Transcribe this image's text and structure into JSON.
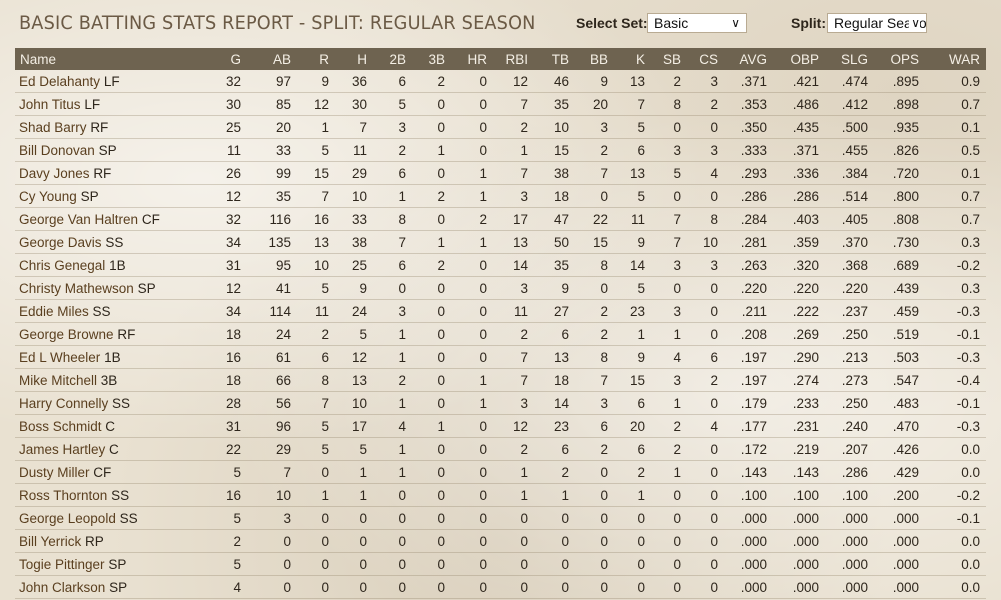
{
  "header": {
    "title": "BASIC BATTING STATS REPORT - SPLIT: REGULAR SEASON",
    "select_set_label": "Select Set:",
    "select_set_value": "Basic",
    "split_label": "Split:",
    "split_value": "Regular Season"
  },
  "table": {
    "columns": [
      "Name",
      "G",
      "AB",
      "R",
      "H",
      "2B",
      "3B",
      "HR",
      "RBI",
      "TB",
      "BB",
      "K",
      "SB",
      "CS",
      "AVG",
      "OBP",
      "SLG",
      "OPS",
      "WAR"
    ],
    "rows": [
      {
        "name": "Ed Delahanty",
        "pos": "LF",
        "stats": [
          "32",
          "97",
          "9",
          "36",
          "6",
          "2",
          "0",
          "12",
          "46",
          "9",
          "13",
          "2",
          "3",
          ".371",
          ".421",
          ".474",
          ".895",
          "0.9"
        ]
      },
      {
        "name": "John Titus",
        "pos": "LF",
        "stats": [
          "30",
          "85",
          "12",
          "30",
          "5",
          "0",
          "0",
          "7",
          "35",
          "20",
          "7",
          "8",
          "2",
          ".353",
          ".486",
          ".412",
          ".898",
          "0.7"
        ]
      },
      {
        "name": "Shad Barry",
        "pos": "RF",
        "stats": [
          "25",
          "20",
          "1",
          "7",
          "3",
          "0",
          "0",
          "2",
          "10",
          "3",
          "5",
          "0",
          "0",
          ".350",
          ".435",
          ".500",
          ".935",
          "0.1"
        ]
      },
      {
        "name": "Bill Donovan",
        "pos": "SP",
        "stats": [
          "11",
          "33",
          "5",
          "11",
          "2",
          "1",
          "0",
          "1",
          "15",
          "2",
          "6",
          "3",
          "3",
          ".333",
          ".371",
          ".455",
          ".826",
          "0.5"
        ]
      },
      {
        "name": "Davy Jones",
        "pos": "RF",
        "stats": [
          "26",
          "99",
          "15",
          "29",
          "6",
          "0",
          "1",
          "7",
          "38",
          "7",
          "13",
          "5",
          "4",
          ".293",
          ".336",
          ".384",
          ".720",
          "0.1"
        ]
      },
      {
        "name": "Cy Young",
        "pos": "SP",
        "stats": [
          "12",
          "35",
          "7",
          "10",
          "1",
          "2",
          "1",
          "3",
          "18",
          "0",
          "5",
          "0",
          "0",
          ".286",
          ".286",
          ".514",
          ".800",
          "0.7"
        ]
      },
      {
        "name": "George Van Haltren",
        "pos": "CF",
        "stats": [
          "32",
          "116",
          "16",
          "33",
          "8",
          "0",
          "2",
          "17",
          "47",
          "22",
          "11",
          "7",
          "8",
          ".284",
          ".403",
          ".405",
          ".808",
          "0.7"
        ]
      },
      {
        "name": "George Davis",
        "pos": "SS",
        "stats": [
          "34",
          "135",
          "13",
          "38",
          "7",
          "1",
          "1",
          "13",
          "50",
          "15",
          "9",
          "7",
          "10",
          ".281",
          ".359",
          ".370",
          ".730",
          "0.3"
        ]
      },
      {
        "name": "Chris Genegal",
        "pos": "1B",
        "stats": [
          "31",
          "95",
          "10",
          "25",
          "6",
          "2",
          "0",
          "14",
          "35",
          "8",
          "14",
          "3",
          "3",
          ".263",
          ".320",
          ".368",
          ".689",
          "-0.2"
        ]
      },
      {
        "name": "Christy Mathewson",
        "pos": "SP",
        "stats": [
          "12",
          "41",
          "5",
          "9",
          "0",
          "0",
          "0",
          "3",
          "9",
          "0",
          "5",
          "0",
          "0",
          ".220",
          ".220",
          ".220",
          ".439",
          "0.3"
        ]
      },
      {
        "name": "Eddie Miles",
        "pos": "SS",
        "stats": [
          "34",
          "114",
          "11",
          "24",
          "3",
          "0",
          "0",
          "11",
          "27",
          "2",
          "23",
          "3",
          "0",
          ".211",
          ".222",
          ".237",
          ".459",
          "-0.3"
        ]
      },
      {
        "name": "George Browne",
        "pos": "RF",
        "stats": [
          "18",
          "24",
          "2",
          "5",
          "1",
          "0",
          "0",
          "2",
          "6",
          "2",
          "1",
          "1",
          "0",
          ".208",
          ".269",
          ".250",
          ".519",
          "-0.1"
        ]
      },
      {
        "name": "Ed L Wheeler",
        "pos": "1B",
        "stats": [
          "16",
          "61",
          "6",
          "12",
          "1",
          "0",
          "0",
          "7",
          "13",
          "8",
          "9",
          "4",
          "6",
          ".197",
          ".290",
          ".213",
          ".503",
          "-0.3"
        ]
      },
      {
        "name": "Mike Mitchell",
        "pos": "3B",
        "stats": [
          "18",
          "66",
          "8",
          "13",
          "2",
          "0",
          "1",
          "7",
          "18",
          "7",
          "15",
          "3",
          "2",
          ".197",
          ".274",
          ".273",
          ".547",
          "-0.4"
        ]
      },
      {
        "name": "Harry Connelly",
        "pos": "SS",
        "stats": [
          "28",
          "56",
          "7",
          "10",
          "1",
          "0",
          "1",
          "3",
          "14",
          "3",
          "6",
          "1",
          "0",
          ".179",
          ".233",
          ".250",
          ".483",
          "-0.1"
        ]
      },
      {
        "name": "Boss Schmidt",
        "pos": "C",
        "stats": [
          "31",
          "96",
          "5",
          "17",
          "4",
          "1",
          "0",
          "12",
          "23",
          "6",
          "20",
          "2",
          "4",
          ".177",
          ".231",
          ".240",
          ".470",
          "-0.3"
        ]
      },
      {
        "name": "James Hartley",
        "pos": "C",
        "stats": [
          "22",
          "29",
          "5",
          "5",
          "1",
          "0",
          "0",
          "2",
          "6",
          "2",
          "6",
          "2",
          "0",
          ".172",
          ".219",
          ".207",
          ".426",
          "0.0"
        ]
      },
      {
        "name": "Dusty Miller",
        "pos": "CF",
        "stats": [
          "5",
          "7",
          "0",
          "1",
          "1",
          "0",
          "0",
          "1",
          "2",
          "0",
          "2",
          "1",
          "0",
          ".143",
          ".143",
          ".286",
          ".429",
          "0.0"
        ]
      },
      {
        "name": "Ross Thornton",
        "pos": "SS",
        "stats": [
          "16",
          "10",
          "1",
          "1",
          "0",
          "0",
          "0",
          "1",
          "1",
          "0",
          "1",
          "0",
          "0",
          ".100",
          ".100",
          ".100",
          ".200",
          "-0.2"
        ]
      },
      {
        "name": "George Leopold",
        "pos": "SS",
        "stats": [
          "5",
          "3",
          "0",
          "0",
          "0",
          "0",
          "0",
          "0",
          "0",
          "0",
          "0",
          "0",
          "0",
          ".000",
          ".000",
          ".000",
          ".000",
          "-0.1"
        ]
      },
      {
        "name": "Bill Yerrick",
        "pos": "RP",
        "stats": [
          "2",
          "0",
          "0",
          "0",
          "0",
          "0",
          "0",
          "0",
          "0",
          "0",
          "0",
          "0",
          "0",
          ".000",
          ".000",
          ".000",
          ".000",
          "0.0"
        ]
      },
      {
        "name": "Togie Pittinger",
        "pos": "SP",
        "stats": [
          "5",
          "0",
          "0",
          "0",
          "0",
          "0",
          "0",
          "0",
          "0",
          "0",
          "0",
          "0",
          "0",
          ".000",
          ".000",
          ".000",
          ".000",
          "0.0"
        ]
      },
      {
        "name": "John Clarkson",
        "pos": "SP",
        "stats": [
          "4",
          "0",
          "0",
          "0",
          "0",
          "0",
          "0",
          "0",
          "0",
          "0",
          "0",
          "0",
          "0",
          ".000",
          ".000",
          ".000",
          ".000",
          "0.0"
        ]
      }
    ]
  },
  "icons": {
    "dropdown": "chevron-down-icon"
  }
}
